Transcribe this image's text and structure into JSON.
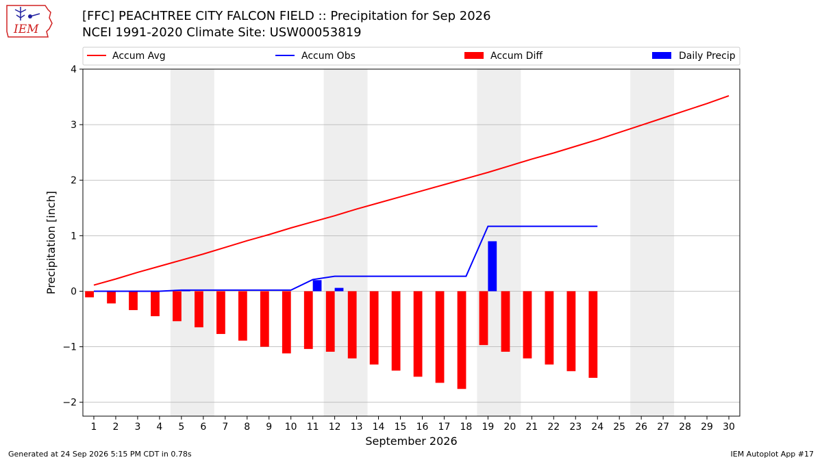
{
  "header": {
    "logo_text": "IEM",
    "title_line1": "[FFC] PEACHTREE CITY FALCON FIELD :: Precipitation for Sep 2026",
    "title_line2": "NCEI 1991-2020 Climate Site: USW00053819"
  },
  "footer": {
    "left": "Generated at 24 Sep 2026 5:15 PM CDT in 0.78s",
    "right": "IEM Autoplot App #17"
  },
  "colors": {
    "accum_avg": "#ff0000",
    "accum_obs": "#0000ff",
    "accum_diff": "#ff0000",
    "daily_precip": "#0000ff",
    "weekend_shade": "#eeeeee",
    "grid": "#b0b0b0"
  },
  "chart_data": {
    "type": "bar",
    "xlabel": "September 2026",
    "ylabel": "Precipitation [inch]",
    "xlim": [
      0.5,
      30.5
    ],
    "ylim": [
      -2.25,
      4.0
    ],
    "yticks": [
      -2,
      -1,
      0,
      1,
      2,
      3,
      4
    ],
    "ytick_labels": [
      "−2",
      "−1",
      "0",
      "1",
      "2",
      "3",
      "4"
    ],
    "x": [
      1,
      2,
      3,
      4,
      5,
      6,
      7,
      8,
      9,
      10,
      11,
      12,
      13,
      14,
      15,
      16,
      17,
      18,
      19,
      20,
      21,
      22,
      23,
      24,
      25,
      26,
      27,
      28,
      29,
      30
    ],
    "xtick_labels": [
      "1",
      "2",
      "3",
      "4",
      "5",
      "6",
      "7",
      "8",
      "9",
      "10",
      "11",
      "12",
      "13",
      "14",
      "15",
      "16",
      "17",
      "18",
      "19",
      "20",
      "21",
      "22",
      "23",
      "24",
      "25",
      "26",
      "27",
      "28",
      "29",
      "30"
    ],
    "grid": "horizontal",
    "legend_position": "top",
    "shaded_days": [
      [
        5,
        6
      ],
      [
        12,
        13
      ],
      [
        19,
        20
      ],
      [
        26,
        27
      ]
    ],
    "series": [
      {
        "name": "Accum Avg",
        "kind": "line",
        "x": [
          1,
          2,
          3,
          4,
          5,
          6,
          7,
          8,
          9,
          10,
          11,
          12,
          13,
          14,
          15,
          16,
          17,
          18,
          19,
          20,
          21,
          22,
          23,
          24,
          25,
          26,
          27,
          28,
          29,
          30
        ],
        "values": [
          0.11,
          0.22,
          0.34,
          0.45,
          0.56,
          0.67,
          0.79,
          0.91,
          1.02,
          1.14,
          1.25,
          1.36,
          1.48,
          1.59,
          1.7,
          1.81,
          1.92,
          2.03,
          2.14,
          2.26,
          2.38,
          2.49,
          2.61,
          2.73,
          2.86,
          2.99,
          3.12,
          3.25,
          3.38,
          3.52
        ]
      },
      {
        "name": "Accum Obs",
        "kind": "line",
        "x": [
          1,
          2,
          3,
          4,
          5,
          6,
          7,
          8,
          9,
          10,
          11,
          12,
          13,
          14,
          15,
          16,
          17,
          18,
          19,
          20,
          21,
          22,
          23,
          24
        ],
        "values": [
          0.0,
          0.0,
          0.0,
          0.0,
          0.02,
          0.02,
          0.02,
          0.02,
          0.02,
          0.02,
          0.21,
          0.27,
          0.27,
          0.27,
          0.27,
          0.27,
          0.27,
          0.27,
          1.17,
          1.17,
          1.17,
          1.17,
          1.17,
          1.17
        ]
      },
      {
        "name": "Accum Diff",
        "kind": "bar",
        "offset": -0.2,
        "x": [
          1,
          2,
          3,
          4,
          5,
          6,
          7,
          8,
          9,
          10,
          11,
          12,
          13,
          14,
          15,
          16,
          17,
          18,
          19,
          20,
          21,
          22,
          23,
          24
        ],
        "values": [
          -0.11,
          -0.22,
          -0.34,
          -0.45,
          -0.54,
          -0.65,
          -0.77,
          -0.89,
          -1.0,
          -1.12,
          -1.04,
          -1.09,
          -1.21,
          -1.32,
          -1.43,
          -1.54,
          -1.65,
          -1.76,
          -0.97,
          -1.09,
          -1.21,
          -1.32,
          -1.44,
          -1.56
        ]
      },
      {
        "name": "Daily Precip",
        "kind": "bar",
        "offset": 0.2,
        "x": [
          5,
          11,
          12,
          19
        ],
        "values": [
          0.02,
          0.2,
          0.06,
          0.9
        ]
      }
    ]
  }
}
